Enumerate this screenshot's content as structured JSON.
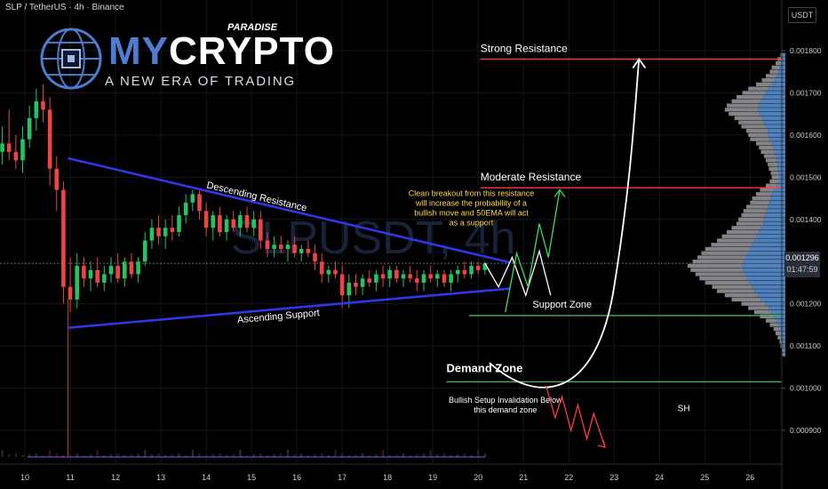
{
  "header": {
    "symbol": "SLP / TetherUS · 4h · Binance"
  },
  "watermark": {
    "text": "SLPUSDT, 4h"
  },
  "logo": {
    "name_part1": "MY",
    "name_part2": "CRYPTO",
    "paradise": "PARADISE",
    "tagline": "A NEW ERA OF TRADING"
  },
  "price_axis": {
    "unit": "USDT",
    "ticks": [
      "0.001800",
      "0.001700",
      "0.001600",
      "0.001500",
      "0.001400",
      "0.001200",
      "0.001100",
      "0.001000",
      "0.000900"
    ],
    "last_price": "0.001296",
    "countdown": "01:47:59"
  },
  "annotations": {
    "strong_resistance": "Strong Resistance",
    "moderate_resistance": "Moderate Resistance",
    "descending_resistance": "Descending Resistance",
    "ascending_support": "Ascending Support",
    "support_zone": "Support Zone",
    "demand_zone": "Demand Zone",
    "breakout_note": [
      "Clean breakout from this resistance",
      "will increase the probability of a",
      "bullish move and 50EMA will act",
      "as a support"
    ],
    "invalidation_note": [
      "Bullish Setup Invalidation Below",
      "this demand zone"
    ],
    "sh_label": "SH"
  },
  "colors": {
    "up": "#22c55e",
    "down": "#ef4444",
    "trendline": "#2f37e6",
    "resistance": "#ff3b3b",
    "support": "#4caf50",
    "note": "#ffd54f",
    "profile": "#5a8fd1"
  },
  "chart_data": {
    "type": "candlestick",
    "title": "SLP / TetherUS · 4h · Binance",
    "xlabel": "",
    "ylabel": "USDT",
    "x_ticks": [
      "10",
      "11",
      "12",
      "13",
      "14",
      "15",
      "16",
      "17",
      "18",
      "19",
      "20",
      "21",
      "22",
      "23",
      "24",
      "25",
      "26"
    ],
    "y_ticks": [
      0.0018,
      0.0017,
      0.0016,
      0.0015,
      0.0014,
      0.0012,
      0.0011,
      0.001,
      0.0009
    ],
    "ylim": [
      0.00082,
      0.00192
    ],
    "xlim": [
      9.45,
      26.7
    ],
    "candles": [
      {
        "t": 9.5,
        "o": 0.00156,
        "h": 0.00162,
        "l": 0.00153,
        "c": 0.00158
      },
      {
        "t": 9.65,
        "o": 0.00158,
        "h": 0.00166,
        "l": 0.00154,
        "c": 0.00156
      },
      {
        "t": 9.8,
        "o": 0.00156,
        "h": 0.0016,
        "l": 0.00152,
        "c": 0.00154
      },
      {
        "t": 9.95,
        "o": 0.00154,
        "h": 0.00162,
        "l": 0.00151,
        "c": 0.00159
      },
      {
        "t": 10.1,
        "o": 0.00159,
        "h": 0.00167,
        "l": 0.00157,
        "c": 0.00164
      },
      {
        "t": 10.25,
        "o": 0.00164,
        "h": 0.00171,
        "l": 0.00161,
        "c": 0.00168
      },
      {
        "t": 10.4,
        "o": 0.00168,
        "h": 0.00172,
        "l": 0.00163,
        "c": 0.00166
      },
      {
        "t": 10.55,
        "o": 0.00166,
        "h": 0.00169,
        "l": 0.00148,
        "c": 0.00152
      },
      {
        "t": 10.7,
        "o": 0.00152,
        "h": 0.00155,
        "l": 0.00142,
        "c": 0.00147
      },
      {
        "t": 10.85,
        "o": 0.00147,
        "h": 0.00149,
        "l": 0.0012,
        "c": 0.00124
      },
      {
        "t": 11.0,
        "o": 0.00124,
        "h": 0.00131,
        "l": 0.00118,
        "c": 0.00121
      },
      {
        "t": 11.15,
        "o": 0.00121,
        "h": 0.00132,
        "l": 0.00119,
        "c": 0.00129
      },
      {
        "t": 11.3,
        "o": 0.00129,
        "h": 0.00131,
        "l": 0.00124,
        "c": 0.00126
      },
      {
        "t": 11.45,
        "o": 0.00126,
        "h": 0.0013,
        "l": 0.00123,
        "c": 0.00128
      },
      {
        "t": 11.6,
        "o": 0.00128,
        "h": 0.00131,
        "l": 0.00124,
        "c": 0.00125
      },
      {
        "t": 11.75,
        "o": 0.00125,
        "h": 0.00129,
        "l": 0.00123,
        "c": 0.00127
      },
      {
        "t": 11.9,
        "o": 0.00127,
        "h": 0.00131,
        "l": 0.00125,
        "c": 0.00129
      },
      {
        "t": 12.05,
        "o": 0.00129,
        "h": 0.00132,
        "l": 0.00125,
        "c": 0.00126
      },
      {
        "t": 12.2,
        "o": 0.00126,
        "h": 0.00131,
        "l": 0.00124,
        "c": 0.0013
      },
      {
        "t": 12.35,
        "o": 0.0013,
        "h": 0.00132,
        "l": 0.00126,
        "c": 0.00127
      },
      {
        "t": 12.5,
        "o": 0.00127,
        "h": 0.00131,
        "l": 0.00125,
        "c": 0.0013
      },
      {
        "t": 12.65,
        "o": 0.0013,
        "h": 0.00137,
        "l": 0.00129,
        "c": 0.00135
      },
      {
        "t": 12.8,
        "o": 0.00135,
        "h": 0.0014,
        "l": 0.00133,
        "c": 0.00138
      },
      {
        "t": 12.95,
        "o": 0.00138,
        "h": 0.00141,
        "l": 0.00134,
        "c": 0.00136
      },
      {
        "t": 13.1,
        "o": 0.00136,
        "h": 0.0014,
        "l": 0.00133,
        "c": 0.00138
      },
      {
        "t": 13.25,
        "o": 0.00138,
        "h": 0.00141,
        "l": 0.00135,
        "c": 0.00137
      },
      {
        "t": 13.4,
        "o": 0.00137,
        "h": 0.00143,
        "l": 0.00136,
        "c": 0.00141
      },
      {
        "t": 13.55,
        "o": 0.00141,
        "h": 0.00146,
        "l": 0.00139,
        "c": 0.00144
      },
      {
        "t": 13.7,
        "o": 0.00144,
        "h": 0.00147,
        "l": 0.00142,
        "c": 0.00146
      },
      {
        "t": 13.85,
        "o": 0.00146,
        "h": 0.00147,
        "l": 0.0014,
        "c": 0.00142
      },
      {
        "t": 14.0,
        "o": 0.00142,
        "h": 0.00144,
        "l": 0.00136,
        "c": 0.00138
      },
      {
        "t": 14.15,
        "o": 0.00138,
        "h": 0.00142,
        "l": 0.00135,
        "c": 0.00141
      },
      {
        "t": 14.3,
        "o": 0.00141,
        "h": 0.00143,
        "l": 0.00136,
        "c": 0.00137
      },
      {
        "t": 14.45,
        "o": 0.00137,
        "h": 0.00141,
        "l": 0.00135,
        "c": 0.0014
      },
      {
        "t": 14.6,
        "o": 0.0014,
        "h": 0.00142,
        "l": 0.00137,
        "c": 0.00138
      },
      {
        "t": 14.75,
        "o": 0.00138,
        "h": 0.00142,
        "l": 0.00136,
        "c": 0.00141
      },
      {
        "t": 14.9,
        "o": 0.00141,
        "h": 0.00143,
        "l": 0.00137,
        "c": 0.00138
      },
      {
        "t": 15.05,
        "o": 0.00138,
        "h": 0.00142,
        "l": 0.00136,
        "c": 0.0014
      },
      {
        "t": 15.2,
        "o": 0.0014,
        "h": 0.00142,
        "l": 0.00133,
        "c": 0.00135
      },
      {
        "t": 15.35,
        "o": 0.00135,
        "h": 0.00137,
        "l": 0.00131,
        "c": 0.00133
      },
      {
        "t": 15.5,
        "o": 0.00133,
        "h": 0.00136,
        "l": 0.00131,
        "c": 0.00134
      },
      {
        "t": 15.65,
        "o": 0.00134,
        "h": 0.00136,
        "l": 0.00132,
        "c": 0.00133
      },
      {
        "t": 15.8,
        "o": 0.00133,
        "h": 0.00135,
        "l": 0.0013,
        "c": 0.00134
      },
      {
        "t": 15.95,
        "o": 0.00134,
        "h": 0.00136,
        "l": 0.00131,
        "c": 0.00132
      },
      {
        "t": 16.1,
        "o": 0.00132,
        "h": 0.00134,
        "l": 0.0013,
        "c": 0.00133
      },
      {
        "t": 16.25,
        "o": 0.00133,
        "h": 0.00135,
        "l": 0.00131,
        "c": 0.00132
      },
      {
        "t": 16.4,
        "o": 0.00132,
        "h": 0.00134,
        "l": 0.00128,
        "c": 0.0013
      },
      {
        "t": 16.55,
        "o": 0.0013,
        "h": 0.00132,
        "l": 0.00125,
        "c": 0.00127
      },
      {
        "t": 16.7,
        "o": 0.00127,
        "h": 0.00129,
        "l": 0.00125,
        "c": 0.00128
      },
      {
        "t": 16.85,
        "o": 0.00128,
        "h": 0.0013,
        "l": 0.00126,
        "c": 0.00127
      },
      {
        "t": 17.0,
        "o": 0.00127,
        "h": 0.00129,
        "l": 0.00119,
        "c": 0.00122
      },
      {
        "t": 17.15,
        "o": 0.00122,
        "h": 0.00127,
        "l": 0.00119,
        "c": 0.00125
      },
      {
        "t": 17.3,
        "o": 0.00125,
        "h": 0.00127,
        "l": 0.00122,
        "c": 0.00124
      },
      {
        "t": 17.45,
        "o": 0.00124,
        "h": 0.00127,
        "l": 0.00122,
        "c": 0.00126
      },
      {
        "t": 17.6,
        "o": 0.00126,
        "h": 0.00128,
        "l": 0.00124,
        "c": 0.00125
      },
      {
        "t": 17.75,
        "o": 0.00125,
        "h": 0.00128,
        "l": 0.00123,
        "c": 0.00127
      },
      {
        "t": 17.9,
        "o": 0.00127,
        "h": 0.00129,
        "l": 0.00124,
        "c": 0.00126
      },
      {
        "t": 18.05,
        "o": 0.00126,
        "h": 0.00129,
        "l": 0.00124,
        "c": 0.00128
      },
      {
        "t": 18.2,
        "o": 0.00128,
        "h": 0.00129,
        "l": 0.00125,
        "c": 0.00126
      },
      {
        "t": 18.35,
        "o": 0.00126,
        "h": 0.00128,
        "l": 0.00124,
        "c": 0.00127
      },
      {
        "t": 18.5,
        "o": 0.00127,
        "h": 0.00129,
        "l": 0.00125,
        "c": 0.00126
      },
      {
        "t": 18.65,
        "o": 0.00126,
        "h": 0.00128,
        "l": 0.00123,
        "c": 0.00125
      },
      {
        "t": 18.8,
        "o": 0.00125,
        "h": 0.00128,
        "l": 0.00123,
        "c": 0.00127
      },
      {
        "t": 18.95,
        "o": 0.00127,
        "h": 0.00129,
        "l": 0.00125,
        "c": 0.00126
      },
      {
        "t": 19.1,
        "o": 0.00126,
        "h": 0.00128,
        "l": 0.00124,
        "c": 0.00127
      },
      {
        "t": 19.25,
        "o": 0.00127,
        "h": 0.00128,
        "l": 0.00124,
        "c": 0.00125
      },
      {
        "t": 19.4,
        "o": 0.00125,
        "h": 0.00128,
        "l": 0.00123,
        "c": 0.00127
      },
      {
        "t": 19.55,
        "o": 0.00127,
        "h": 0.00129,
        "l": 0.00125,
        "c": 0.00128
      },
      {
        "t": 19.7,
        "o": 0.00128,
        "h": 0.0013,
        "l": 0.00126,
        "c": 0.00127
      },
      {
        "t": 19.85,
        "o": 0.00127,
        "h": 0.0013,
        "l": 0.00126,
        "c": 0.00129
      },
      {
        "t": 20.0,
        "o": 0.00129,
        "h": 0.0013,
        "l": 0.00127,
        "c": 0.00128
      },
      {
        "t": 20.15,
        "o": 0.00128,
        "h": 0.0013,
        "l": 0.00127,
        "c": 0.001296
      }
    ],
    "volume_profile": [
      {
        "p": 0.00179,
        "v": 0.05
      },
      {
        "p": 0.00178,
        "v": 0.08
      },
      {
        "p": 0.00177,
        "v": 0.1
      },
      {
        "p": 0.00176,
        "v": 0.14
      },
      {
        "p": 0.00175,
        "v": 0.16
      },
      {
        "p": 0.00174,
        "v": 0.2
      },
      {
        "p": 0.00173,
        "v": 0.24
      },
      {
        "p": 0.00172,
        "v": 0.3
      },
      {
        "p": 0.00171,
        "v": 0.38
      },
      {
        "p": 0.0017,
        "v": 0.44
      },
      {
        "p": 0.00169,
        "v": 0.5
      },
      {
        "p": 0.00168,
        "v": 0.55
      },
      {
        "p": 0.00167,
        "v": 0.6
      },
      {
        "p": 0.00166,
        "v": 0.62
      },
      {
        "p": 0.00165,
        "v": 0.58
      },
      {
        "p": 0.00164,
        "v": 0.52
      },
      {
        "p": 0.00163,
        "v": 0.48
      },
      {
        "p": 0.00162,
        "v": 0.45
      },
      {
        "p": 0.00161,
        "v": 0.4
      },
      {
        "p": 0.0016,
        "v": 0.38
      },
      {
        "p": 0.00159,
        "v": 0.36
      },
      {
        "p": 0.00158,
        "v": 0.3
      },
      {
        "p": 0.00157,
        "v": 0.27
      },
      {
        "p": 0.00156,
        "v": 0.25
      },
      {
        "p": 0.00155,
        "v": 0.22
      },
      {
        "p": 0.00154,
        "v": 0.2
      },
      {
        "p": 0.00153,
        "v": 0.18
      },
      {
        "p": 0.00152,
        "v": 0.17
      },
      {
        "p": 0.00151,
        "v": 0.15
      },
      {
        "p": 0.0015,
        "v": 0.14
      },
      {
        "p": 0.00149,
        "v": 0.16
      },
      {
        "p": 0.00148,
        "v": 0.2
      },
      {
        "p": 0.00147,
        "v": 0.26
      },
      {
        "p": 0.00146,
        "v": 0.3
      },
      {
        "p": 0.00145,
        "v": 0.34
      },
      {
        "p": 0.00144,
        "v": 0.36
      },
      {
        "p": 0.00143,
        "v": 0.4
      },
      {
        "p": 0.00142,
        "v": 0.43
      },
      {
        "p": 0.00141,
        "v": 0.45
      },
      {
        "p": 0.0014,
        "v": 0.48
      },
      {
        "p": 0.00139,
        "v": 0.5
      },
      {
        "p": 0.00138,
        "v": 0.55
      },
      {
        "p": 0.00137,
        "v": 0.6
      },
      {
        "p": 0.00136,
        "v": 0.65
      },
      {
        "p": 0.00135,
        "v": 0.7
      },
      {
        "p": 0.00134,
        "v": 0.76
      },
      {
        "p": 0.00133,
        "v": 0.82
      },
      {
        "p": 0.00132,
        "v": 0.86
      },
      {
        "p": 0.00131,
        "v": 0.9
      },
      {
        "p": 0.0013,
        "v": 0.95
      },
      {
        "p": 0.00129,
        "v": 1.0
      },
      {
        "p": 0.00128,
        "v": 0.97
      },
      {
        "p": 0.00127,
        "v": 0.92
      },
      {
        "p": 0.00126,
        "v": 0.88
      },
      {
        "p": 0.00125,
        "v": 0.82
      },
      {
        "p": 0.00124,
        "v": 0.75
      },
      {
        "p": 0.00123,
        "v": 0.7
      },
      {
        "p": 0.00122,
        "v": 0.62
      },
      {
        "p": 0.00121,
        "v": 0.55
      },
      {
        "p": 0.0012,
        "v": 0.45
      },
      {
        "p": 0.00119,
        "v": 0.38
      },
      {
        "p": 0.00118,
        "v": 0.32
      },
      {
        "p": 0.00117,
        "v": 0.26
      },
      {
        "p": 0.00116,
        "v": 0.2
      },
      {
        "p": 0.00115,
        "v": 0.16
      },
      {
        "p": 0.00114,
        "v": 0.12
      },
      {
        "p": 0.00113,
        "v": 0.1
      },
      {
        "p": 0.00112,
        "v": 0.08
      },
      {
        "p": 0.00111,
        "v": 0.06
      },
      {
        "p": 0.0011,
        "v": 0.05
      },
      {
        "p": 0.00109,
        "v": 0.04
      },
      {
        "p": 0.00108,
        "v": 0.03
      }
    ],
    "levels": {
      "strong_resistance": 0.00178,
      "moderate_resistance": 0.001475,
      "support_zone": 0.001172,
      "demand_zone": 0.001015
    },
    "trendlines": {
      "descending_resistance": {
        "from": {
          "t": 10.95,
          "p": 0.001545
        },
        "to": {
          "t": 20.7,
          "p": 0.001298
        }
      },
      "ascending_support": {
        "from": {
          "t": 10.95,
          "p": 0.001143
        },
        "to": {
          "t": 20.7,
          "p": 0.001236
        }
      }
    }
  }
}
